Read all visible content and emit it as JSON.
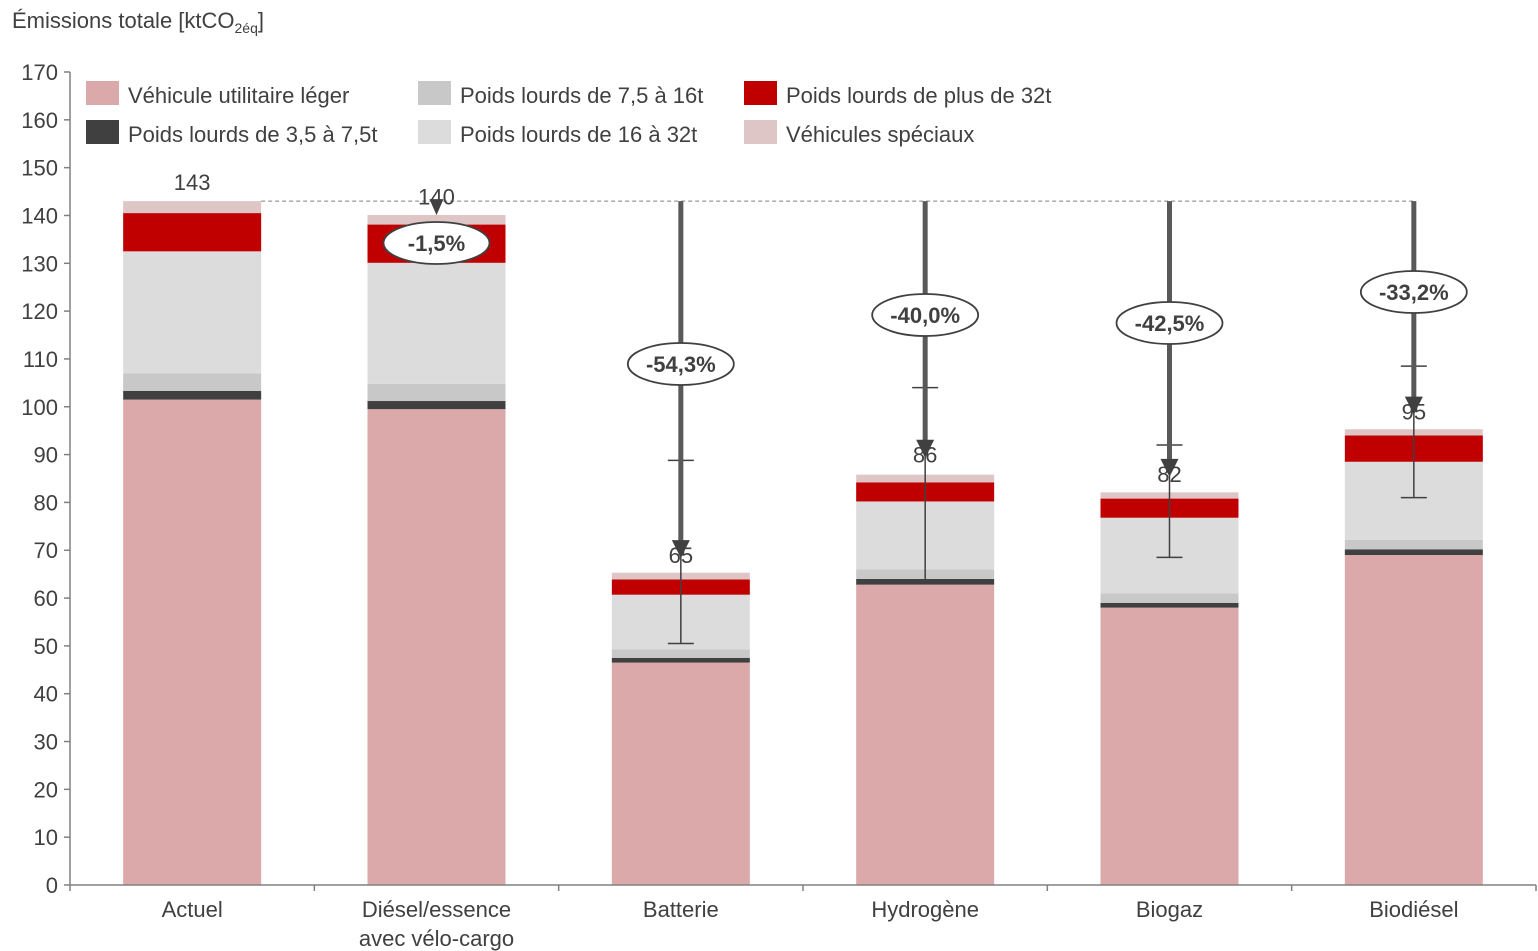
{
  "chart_data": {
    "type": "bar",
    "stacked": true,
    "ylabel_main": "Émissions totale [ktCO",
    "ylabel_sub": "2éq",
    "ylabel_end": "]",
    "ylim": [
      0,
      170
    ],
    "ytick_step": 10,
    "categories": [
      "Actuel",
      "Diésel/essence\navec vélo-cargo",
      "Batterie",
      "Hydrogène",
      "Biogaz",
      "Biodiésel"
    ],
    "series": [
      {
        "name": "Véhicule utilitaire léger",
        "color": "#DBA9AA",
        "values": [
          101.5,
          99.5,
          46.5,
          62.8,
          58.0,
          69.0
        ]
      },
      {
        "name": "Poids lourds de 3,5 à 7,5t",
        "color": "#404040",
        "values": [
          1.8,
          1.7,
          1.0,
          1.2,
          1.0,
          1.2
        ]
      },
      {
        "name": "Poids lourds de 7,5 à 16t",
        "color": "#C8C8C8",
        "values": [
          3.7,
          3.6,
          1.8,
          2.0,
          2.0,
          2.0
        ]
      },
      {
        "name": "Poids lourds de 16 à 32t",
        "color": "#DCDCDC",
        "values": [
          25.5,
          25.3,
          11.4,
          14.2,
          15.8,
          16.3
        ]
      },
      {
        "name": "Poids lourds de plus de 32t",
        "color": "#C00000",
        "values": [
          8.0,
          8.0,
          3.2,
          4.0,
          4.0,
          5.5
        ]
      },
      {
        "name": "Véhicules spéciaux",
        "color": "#DFC6C6",
        "values": [
          2.5,
          2.0,
          1.4,
          1.6,
          1.3,
          1.3
        ]
      }
    ],
    "totals": [
      143,
      140,
      65,
      86,
      82,
      95
    ],
    "total_labels": [
      "143",
      "140",
      "65",
      "86",
      "82",
      "95"
    ],
    "reductions": [
      null,
      "-1,5%",
      "-54,3%",
      "-40,0%",
      "-42,5%",
      "-33,2%"
    ],
    "error_bars": [
      null,
      null,
      [
        50.5,
        88.8
      ],
      [
        63.5,
        104.0
      ],
      [
        68.5,
        92.0
      ],
      [
        81.0,
        108.5
      ]
    ],
    "reference_line": 143,
    "legend_placement": "top-left",
    "grid": false
  }
}
